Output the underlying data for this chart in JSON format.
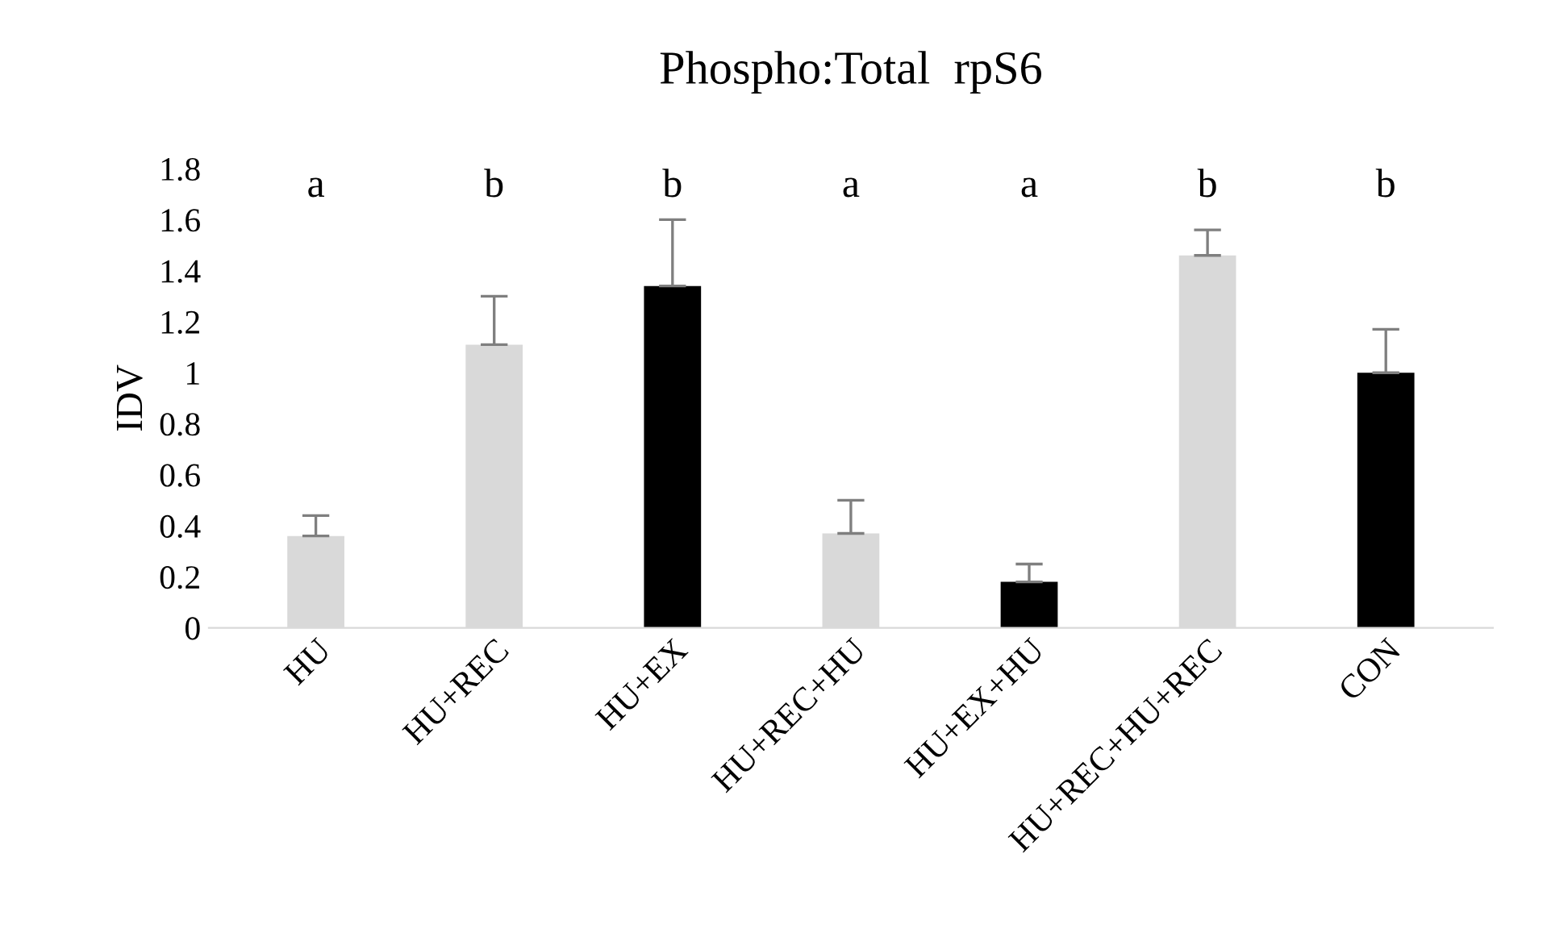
{
  "chart_data": {
    "type": "bar",
    "title": "Phospho:Total  rpS6",
    "ylabel": "IDV",
    "categories": [
      "HU",
      "HU+REC",
      "HU+EX",
      "HU+REC+HU",
      "HU+EX+HU",
      "HU+REC+HU+REC",
      "CON"
    ],
    "values": [
      0.36,
      1.11,
      1.34,
      0.37,
      0.18,
      1.46,
      1.0
    ],
    "errors": [
      [
        0.36,
        0.44
      ],
      [
        1.11,
        1.3
      ],
      [
        1.34,
        1.6
      ],
      [
        0.37,
        0.5
      ],
      [
        0.18,
        0.25
      ],
      [
        1.46,
        1.56
      ],
      [
        1.0,
        1.17
      ]
    ],
    "colors": [
      "#d9d9d9",
      "#d9d9d9",
      "#000000",
      "#d9d9d9",
      "#000000",
      "#d9d9d9",
      "#000000"
    ],
    "ylim": [
      0,
      1.8
    ],
    "yticks": [
      0,
      0.2,
      0.4,
      0.6,
      0.8,
      1,
      1.2,
      1.4,
      1.6,
      1.8
    ],
    "annotations": [
      "a",
      "b",
      "b",
      "a",
      "a",
      "b",
      "b"
    ],
    "grid": false,
    "legend": false
  }
}
